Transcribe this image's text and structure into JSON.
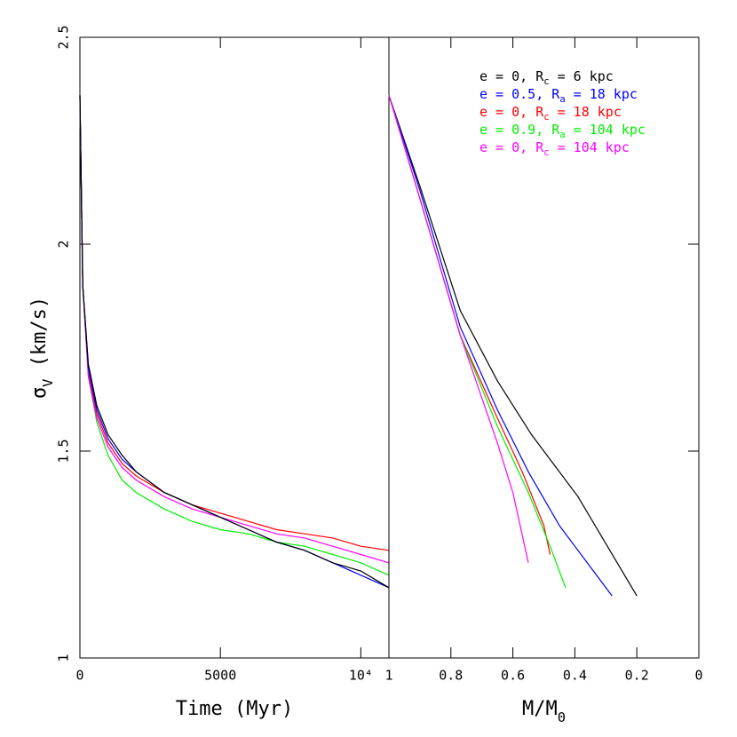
{
  "chart_data": [
    {
      "type": "line",
      "xlabel": "Time (Myr)",
      "ylabel": [
        "σ",
        "V",
        " (km/s)"
      ],
      "xlim": [
        0,
        11000
      ],
      "xticks": [
        0,
        5000,
        {
          "value": 10000,
          "label": "10⁴"
        }
      ],
      "ylim": [
        1,
        2.5
      ],
      "yticks": [
        1,
        1.5,
        2,
        2.5
      ],
      "x": [
        0,
        100,
        300,
        600,
        1000,
        1500,
        2000,
        3000,
        4000,
        5000,
        6000,
        7000,
        8000,
        9000,
        10000,
        11000
      ],
      "series": [
        {
          "color": "#ff0000",
          "values": [
            2.36,
            1.9,
            1.69,
            1.59,
            1.52,
            1.47,
            1.44,
            1.4,
            1.37,
            1.35,
            1.33,
            1.31,
            1.3,
            1.29,
            1.27,
            1.26
          ]
        },
        {
          "color": "#00ee00",
          "values": [
            2.36,
            1.9,
            1.68,
            1.57,
            1.49,
            1.43,
            1.4,
            1.36,
            1.33,
            1.31,
            1.3,
            1.28,
            1.27,
            1.25,
            1.23,
            1.2
          ]
        },
        {
          "color": "#ff00ff",
          "values": [
            2.36,
            1.9,
            1.68,
            1.58,
            1.51,
            1.46,
            1.43,
            1.39,
            1.36,
            1.34,
            1.32,
            1.3,
            1.29,
            1.27,
            1.25,
            1.23
          ]
        },
        {
          "color": "#0000ff",
          "values": [
            2.36,
            1.9,
            1.7,
            1.6,
            1.53,
            1.48,
            1.45,
            1.4,
            1.37,
            1.34,
            1.31,
            1.28,
            1.26,
            1.23,
            1.2,
            1.17
          ]
        },
        {
          "color": "#000000",
          "values": [
            2.36,
            1.9,
            1.71,
            1.61,
            1.54,
            1.49,
            1.45,
            1.4,
            1.37,
            1.34,
            1.31,
            1.28,
            1.26,
            1.23,
            1.21,
            1.17
          ]
        }
      ]
    },
    {
      "type": "line",
      "xlabel": [
        "M/M",
        "0"
      ],
      "xlim": [
        1,
        0
      ],
      "xticks": [
        1,
        0.8,
        0.6,
        0.4,
        0.2,
        0
      ],
      "ylim": [
        1,
        2.5
      ],
      "series": [
        {
          "name": [
            "e = 0, R",
            "c",
            " = 6 kpc"
          ],
          "color": "#000000",
          "x": [
            1,
            0.9,
            0.77,
            0.65,
            0.54,
            0.39,
            0.2
          ],
          "values": [
            2.36,
            2.14,
            1.84,
            1.67,
            1.54,
            1.39,
            1.15
          ]
        },
        {
          "name": [
            "e = 0.5, R",
            "a",
            " = 18 kpc"
          ],
          "color": "#0000ff",
          "x": [
            1,
            0.9,
            0.77,
            0.65,
            0.55,
            0.45,
            0.35,
            0.28
          ],
          "values": [
            2.36,
            2.13,
            1.8,
            1.6,
            1.45,
            1.32,
            1.22,
            1.15
          ]
        },
        {
          "name": [
            "e = 0, R",
            "c",
            " = 18 kpc"
          ],
          "color": "#ff0000",
          "x": [
            1,
            0.9,
            0.77,
            0.65,
            0.57,
            0.5,
            0.48
          ],
          "values": [
            2.36,
            2.11,
            1.78,
            1.58,
            1.45,
            1.32,
            1.25
          ]
        },
        {
          "name": [
            "e = 0.9, R",
            "a",
            " = 104 kpc"
          ],
          "color": "#00ee00",
          "x": [
            1,
            0.9,
            0.77,
            0.65,
            0.55,
            0.48,
            0.43
          ],
          "values": [
            2.36,
            2.11,
            1.78,
            1.56,
            1.4,
            1.27,
            1.17
          ]
        },
        {
          "name": [
            "e = 0, R",
            "c",
            " = 104 kpc"
          ],
          "color": "#ff00ff",
          "x": [
            1,
            0.9,
            0.77,
            0.65,
            0.6,
            0.55
          ],
          "values": [
            2.36,
            2.11,
            1.78,
            1.52,
            1.4,
            1.23
          ]
        }
      ]
    }
  ]
}
